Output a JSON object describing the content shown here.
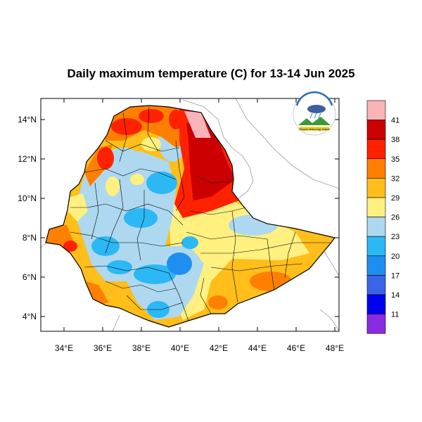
{
  "map": {
    "title": "Daily maximum temperature (C) for 13-14 Jun 2025",
    "lat_ticks": [
      "14°N",
      "12°N",
      "10°N",
      "8°N",
      "6°N",
      "4°N"
    ],
    "lon_ticks": [
      "34°E",
      "36°E",
      "38°E",
      "40°E",
      "42°E",
      "44°E",
      "46°E",
      "48°E"
    ],
    "logo_text": "Ethiopian Meteorology Institute",
    "colorbar": {
      "labels": [
        "41",
        "38",
        "35",
        "32",
        "29",
        "26",
        "23",
        "20",
        "17",
        "14",
        "11"
      ],
      "colors": [
        "#f8b4b8",
        "#cc0000",
        "#ff2200",
        "#ff8000",
        "#ffbe1a",
        "#fff080",
        "#add8f0",
        "#2bb8f5",
        "#1e8ff0",
        "#3c64e6",
        "#0000f0",
        "#8a2be2"
      ]
    }
  }
}
